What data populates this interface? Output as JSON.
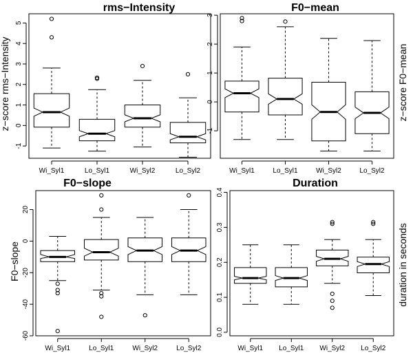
{
  "chart_data": [
    {
      "type": "box",
      "title": "rms−Intensity",
      "xlabel": "",
      "ylabel": "z−score rms−Intensity",
      "ylabel_side": "left",
      "ylim": [
        -1.6,
        5.45
      ],
      "yticks": [
        -1,
        0,
        1,
        2,
        3,
        4,
        5
      ],
      "notched": true,
      "categories": [
        "Wi_Syl1",
        "Lo_Syl1",
        "Wi_Syl2",
        "Lo_Syl2"
      ],
      "series": [
        {
          "category": "Wi_Syl1",
          "whisker_low": -1.1,
          "q1": -0.08,
          "median": 0.65,
          "q3": 1.55,
          "whisker_high": 2.8,
          "notch": [
            0.45,
            0.85
          ],
          "outliers": [
            4.3,
            5.2
          ]
        },
        {
          "category": "Lo_Syl1",
          "whisker_low": -1.25,
          "q1": -0.75,
          "median": -0.4,
          "q3": 0.3,
          "whisker_high": 1.75,
          "notch": [
            -0.55,
            -0.25
          ],
          "outliers": [
            2.28,
            2.33
          ]
        },
        {
          "category": "Wi_Syl2",
          "whisker_low": -1.05,
          "q1": -0.08,
          "median": 0.35,
          "q3": 1.0,
          "whisker_high": 2.2,
          "notch": [
            0.18,
            0.52
          ],
          "outliers": [
            2.9
          ]
        },
        {
          "category": "Lo_Syl2",
          "whisker_low": -1.55,
          "q1": -0.85,
          "median": -0.55,
          "q3": 0.15,
          "whisker_high": 1.35,
          "notch": [
            -0.7,
            -0.4
          ],
          "outliers": [
            2.5
          ]
        }
      ]
    },
    {
      "type": "box",
      "title": "F0−mean",
      "xlabel": "",
      "ylabel": "z−score F0−mean",
      "ylabel_side": "right",
      "ylim": [
        -1.95,
        3.05
      ],
      "yticks": [
        -1,
        0,
        1,
        2,
        3
      ],
      "notched": true,
      "categories": [
        "Wi_Syl1",
        "Lo_Syl1",
        "Wi_Syl2",
        "Lo_Syl2"
      ],
      "series": [
        {
          "category": "Wi_Syl1",
          "whisker_low": -1.3,
          "q1": -0.35,
          "median": 0.3,
          "q3": 0.72,
          "whisker_high": 1.9,
          "notch": [
            0.15,
            0.45
          ],
          "outliers": [
            2.8,
            2.9
          ]
        },
        {
          "category": "Lo_Syl1",
          "whisker_low": -1.3,
          "q1": -0.45,
          "median": 0.1,
          "q3": 0.82,
          "whisker_high": 2.6,
          "notch": [
            -0.08,
            0.28
          ],
          "outliers": [
            2.78
          ]
        },
        {
          "category": "Wi_Syl2",
          "whisker_low": -1.7,
          "q1": -1.35,
          "median": -0.35,
          "q3": 0.68,
          "whisker_high": 2.2,
          "notch": [
            -0.6,
            -0.1
          ],
          "outliers": []
        },
        {
          "category": "Lo_Syl2",
          "whisker_low": -1.7,
          "q1": -1.1,
          "median": -0.38,
          "q3": 0.35,
          "whisker_high": 2.12,
          "notch": [
            -0.58,
            -0.18
          ],
          "outliers": []
        }
      ]
    },
    {
      "type": "box",
      "title": "F0−slope",
      "xlabel": "",
      "ylabel": "F0−slope",
      "ylabel_side": "left",
      "ylim": [
        -60,
        32
      ],
      "yticks": [
        -60,
        -40,
        -20,
        0,
        20
      ],
      "notched": true,
      "categories": [
        "Wi_Syl1",
        "Lo_Syl1",
        "Wi_Syl2",
        "Lo_Syl2"
      ],
      "series": [
        {
          "category": "Wi_Syl1",
          "whisker_low": -25,
          "q1": -13,
          "median": -10,
          "q3": -6,
          "whisker_high": 3,
          "notch": [
            -11,
            -8.5
          ],
          "outliers": [
            -27,
            -31,
            -33,
            -57
          ]
        },
        {
          "category": "Lo_Syl1",
          "whisker_low": -31,
          "q1": -12,
          "median": -7,
          "q3": 1,
          "whisker_high": 15,
          "notch": [
            -9.5,
            -4.5
          ],
          "outliers": [
            -33,
            -35,
            -48,
            20,
            29
          ]
        },
        {
          "category": "Wi_Syl2",
          "whisker_low": -34,
          "q1": -13,
          "median": -6,
          "q3": 2,
          "whisker_high": 15,
          "notch": [
            -8.5,
            -3.5
          ],
          "outliers": [
            -47
          ]
        },
        {
          "category": "Lo_Syl2",
          "whisker_low": -34,
          "q1": -13,
          "median": -6,
          "q3": 2,
          "whisker_high": 20,
          "notch": [
            -8.5,
            -3.5
          ],
          "outliers": [
            29
          ]
        }
      ]
    },
    {
      "type": "box",
      "title": "Duration",
      "xlabel": "",
      "ylabel": "duration in seconds",
      "ylabel_side": "right",
      "ylim": [
        -0.01,
        0.405
      ],
      "yticks": [
        0.0,
        0.1,
        0.2,
        0.3,
        0.4
      ],
      "notched": true,
      "categories": [
        "Wi_Syl1",
        "Lo_Syl1",
        "Wi_Syl2",
        "Lo_Syl2"
      ],
      "series": [
        {
          "category": "Wi_Syl1",
          "whisker_low": 0.08,
          "q1": 0.14,
          "median": 0.155,
          "q3": 0.185,
          "whisker_high": 0.25,
          "notch": [
            0.15,
            0.16
          ],
          "outliers": []
        },
        {
          "category": "Lo_Syl1",
          "whisker_low": 0.08,
          "q1": 0.13,
          "median": 0.155,
          "q3": 0.185,
          "whisker_high": 0.25,
          "notch": [
            0.148,
            0.162
          ],
          "outliers": []
        },
        {
          "category": "Wi_Syl2",
          "whisker_low": 0.14,
          "q1": 0.19,
          "median": 0.21,
          "q3": 0.235,
          "whisker_high": 0.265,
          "notch": [
            0.203,
            0.217
          ],
          "outliers": [
            0.31,
            0.315,
            0.11,
            0.09,
            0.07
          ]
        },
        {
          "category": "Lo_Syl2",
          "whisker_low": 0.105,
          "q1": 0.17,
          "median": 0.195,
          "q3": 0.215,
          "whisker_high": 0.265,
          "notch": [
            0.188,
            0.202
          ],
          "outliers": [
            0.31,
            0.315
          ]
        }
      ]
    }
  ]
}
